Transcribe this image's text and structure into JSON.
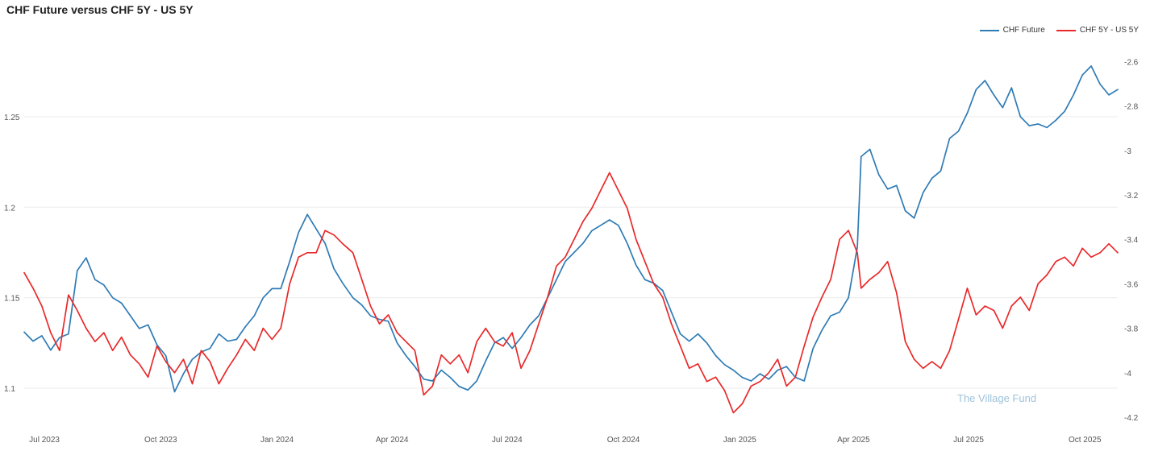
{
  "chart_data": {
    "type": "line",
    "title": "CHF Future versus CHF 5Y - US 5Y",
    "xlabel": "",
    "ylabel_left": "",
    "ylabel_right": "",
    "x_ticks": [
      "Jul 2023",
      "Oct 2023",
      "Jan 2024",
      "Apr 2024",
      "Jul 2024",
      "Oct 2024",
      "Jan 2025",
      "Apr 2025",
      "Jul 2025",
      "Oct 2025"
    ],
    "x_start": "2023-06-15",
    "x_end": "2025-10-27",
    "y_left": {
      "ticks": [
        "1.1",
        "1.15",
        "1.2",
        "1.25"
      ],
      "range": [
        1.084,
        1.286
      ]
    },
    "y_right": {
      "ticks": [
        "-2.6",
        "-2.8",
        "-3",
        "-3.2",
        "-3.4",
        "-3.6",
        "-3.8",
        "-4",
        "-4.2"
      ],
      "range": [
        -4.2,
        -2.555
      ]
    },
    "grid": true,
    "legend": "top-right",
    "series": [
      {
        "name": "CHF Future",
        "color": "#2f7bb5",
        "axis": "left",
        "points": [
          [
            "2023-06-15",
            1.131
          ],
          [
            "2023-06-22",
            1.126
          ],
          [
            "2023-06-29",
            1.129
          ],
          [
            "2023-07-06",
            1.121
          ],
          [
            "2023-07-13",
            1.128
          ],
          [
            "2023-07-20",
            1.13
          ],
          [
            "2023-07-27",
            1.165
          ],
          [
            "2023-08-03",
            1.172
          ],
          [
            "2023-08-10",
            1.16
          ],
          [
            "2023-08-17",
            1.157
          ],
          [
            "2023-08-24",
            1.15
          ],
          [
            "2023-08-31",
            1.147
          ],
          [
            "2023-09-07",
            1.14
          ],
          [
            "2023-09-14",
            1.133
          ],
          [
            "2023-09-21",
            1.135
          ],
          [
            "2023-09-28",
            1.124
          ],
          [
            "2023-10-05",
            1.118
          ],
          [
            "2023-10-12",
            1.098
          ],
          [
            "2023-10-19",
            1.108
          ],
          [
            "2023-10-26",
            1.116
          ],
          [
            "2023-11-02",
            1.12
          ],
          [
            "2023-11-09",
            1.122
          ],
          [
            "2023-11-16",
            1.13
          ],
          [
            "2023-11-23",
            1.126
          ],
          [
            "2023-11-30",
            1.127
          ],
          [
            "2023-12-07",
            1.134
          ],
          [
            "2023-12-14",
            1.14
          ],
          [
            "2023-12-21",
            1.15
          ],
          [
            "2023-12-28",
            1.155
          ],
          [
            "2024-01-04",
            1.155
          ],
          [
            "2024-01-11",
            1.17
          ],
          [
            "2024-01-18",
            1.186
          ],
          [
            "2024-01-25",
            1.196
          ],
          [
            "2024-02-01",
            1.188
          ],
          [
            "2024-02-08",
            1.18
          ],
          [
            "2024-02-15",
            1.166
          ],
          [
            "2024-02-22",
            1.158
          ],
          [
            "2024-03-01",
            1.15
          ],
          [
            "2024-03-08",
            1.146
          ],
          [
            "2024-03-15",
            1.14
          ],
          [
            "2024-03-22",
            1.138
          ],
          [
            "2024-03-29",
            1.137
          ],
          [
            "2024-04-05",
            1.125
          ],
          [
            "2024-04-12",
            1.118
          ],
          [
            "2024-04-19",
            1.112
          ],
          [
            "2024-04-26",
            1.105
          ],
          [
            "2024-05-03",
            1.104
          ],
          [
            "2024-05-10",
            1.11
          ],
          [
            "2024-05-17",
            1.106
          ],
          [
            "2024-05-24",
            1.101
          ],
          [
            "2024-05-31",
            1.099
          ],
          [
            "2024-06-07",
            1.104
          ],
          [
            "2024-06-14",
            1.115
          ],
          [
            "2024-06-21",
            1.125
          ],
          [
            "2024-06-28",
            1.128
          ],
          [
            "2024-07-05",
            1.122
          ],
          [
            "2024-07-12",
            1.128
          ],
          [
            "2024-07-19",
            1.135
          ],
          [
            "2024-07-26",
            1.14
          ],
          [
            "2024-08-02",
            1.15
          ],
          [
            "2024-08-09",
            1.16
          ],
          [
            "2024-08-16",
            1.17
          ],
          [
            "2024-08-23",
            1.175
          ],
          [
            "2024-08-30",
            1.18
          ],
          [
            "2024-09-06",
            1.187
          ],
          [
            "2024-09-13",
            1.19
          ],
          [
            "2024-09-20",
            1.193
          ],
          [
            "2024-09-27",
            1.19
          ],
          [
            "2024-10-04",
            1.18
          ],
          [
            "2024-10-11",
            1.168
          ],
          [
            "2024-10-18",
            1.16
          ],
          [
            "2024-10-25",
            1.158
          ],
          [
            "2024-11-01",
            1.154
          ],
          [
            "2024-11-08",
            1.142
          ],
          [
            "2024-11-15",
            1.13
          ],
          [
            "2024-11-22",
            1.126
          ],
          [
            "2024-11-29",
            1.13
          ],
          [
            "2024-12-06",
            1.125
          ],
          [
            "2024-12-13",
            1.118
          ],
          [
            "2024-12-20",
            1.113
          ],
          [
            "2024-12-27",
            1.11
          ],
          [
            "2025-01-03",
            1.106
          ],
          [
            "2025-01-10",
            1.104
          ],
          [
            "2025-01-17",
            1.108
          ],
          [
            "2025-01-24",
            1.105
          ],
          [
            "2025-01-31",
            1.11
          ],
          [
            "2025-02-07",
            1.112
          ],
          [
            "2025-02-14",
            1.106
          ],
          [
            "2025-02-21",
            1.104
          ],
          [
            "2025-02-28",
            1.122
          ],
          [
            "2025-03-07",
            1.132
          ],
          [
            "2025-03-14",
            1.14
          ],
          [
            "2025-03-21",
            1.142
          ],
          [
            "2025-03-28",
            1.15
          ],
          [
            "2025-04-04",
            1.178
          ],
          [
            "2025-04-07",
            1.228
          ],
          [
            "2025-04-14",
            1.232
          ],
          [
            "2025-04-21",
            1.218
          ],
          [
            "2025-04-28",
            1.21
          ],
          [
            "2025-05-05",
            1.212
          ],
          [
            "2025-05-12",
            1.198
          ],
          [
            "2025-05-19",
            1.194
          ],
          [
            "2025-05-26",
            1.208
          ],
          [
            "2025-06-02",
            1.216
          ],
          [
            "2025-06-09",
            1.22
          ],
          [
            "2025-06-16",
            1.238
          ],
          [
            "2025-06-23",
            1.242
          ],
          [
            "2025-06-30",
            1.252
          ],
          [
            "2025-07-07",
            1.265
          ],
          [
            "2025-07-14",
            1.27
          ],
          [
            "2025-07-21",
            1.262
          ],
          [
            "2025-07-28",
            1.255
          ],
          [
            "2025-08-04",
            1.266
          ],
          [
            "2025-08-11",
            1.25
          ],
          [
            "2025-08-18",
            1.245
          ],
          [
            "2025-08-25",
            1.246
          ],
          [
            "2025-09-01",
            1.244
          ],
          [
            "2025-09-08",
            1.248
          ],
          [
            "2025-09-15",
            1.253
          ],
          [
            "2025-09-22",
            1.262
          ],
          [
            "2025-09-29",
            1.273
          ],
          [
            "2025-10-06",
            1.278
          ],
          [
            "2025-10-13",
            1.268
          ],
          [
            "2025-10-20",
            1.262
          ],
          [
            "2025-10-27",
            1.265
          ]
        ]
      },
      {
        "name": "CHF 5Y - US 5Y",
        "color": "#e8292a",
        "axis": "right",
        "points": [
          [
            "2023-06-15",
            -3.55
          ],
          [
            "2023-06-22",
            -3.62
          ],
          [
            "2023-06-29",
            -3.7
          ],
          [
            "2023-07-06",
            -3.82
          ],
          [
            "2023-07-13",
            -3.9
          ],
          [
            "2023-07-20",
            -3.65
          ],
          [
            "2023-07-27",
            -3.72
          ],
          [
            "2023-08-03",
            -3.8
          ],
          [
            "2023-08-10",
            -3.86
          ],
          [
            "2023-08-17",
            -3.82
          ],
          [
            "2023-08-24",
            -3.9
          ],
          [
            "2023-08-31",
            -3.84
          ],
          [
            "2023-09-07",
            -3.92
          ],
          [
            "2023-09-14",
            -3.96
          ],
          [
            "2023-09-21",
            -4.02
          ],
          [
            "2023-09-28",
            -3.88
          ],
          [
            "2023-10-05",
            -3.95
          ],
          [
            "2023-10-12",
            -4.0
          ],
          [
            "2023-10-19",
            -3.94
          ],
          [
            "2023-10-26",
            -4.05
          ],
          [
            "2023-11-02",
            -3.9
          ],
          [
            "2023-11-09",
            -3.95
          ],
          [
            "2023-11-16",
            -4.05
          ],
          [
            "2023-11-23",
            -3.98
          ],
          [
            "2023-11-30",
            -3.92
          ],
          [
            "2023-12-07",
            -3.85
          ],
          [
            "2023-12-14",
            -3.9
          ],
          [
            "2023-12-21",
            -3.8
          ],
          [
            "2023-12-28",
            -3.85
          ],
          [
            "2024-01-04",
            -3.8
          ],
          [
            "2024-01-11",
            -3.6
          ],
          [
            "2024-01-18",
            -3.48
          ],
          [
            "2024-01-25",
            -3.46
          ],
          [
            "2024-02-01",
            -3.46
          ],
          [
            "2024-02-08",
            -3.36
          ],
          [
            "2024-02-15",
            -3.38
          ],
          [
            "2024-02-22",
            -3.42
          ],
          [
            "2024-03-01",
            -3.46
          ],
          [
            "2024-03-08",
            -3.58
          ],
          [
            "2024-03-15",
            -3.7
          ],
          [
            "2024-03-22",
            -3.78
          ],
          [
            "2024-03-29",
            -3.74
          ],
          [
            "2024-04-05",
            -3.82
          ],
          [
            "2024-04-12",
            -3.86
          ],
          [
            "2024-04-19",
            -3.9
          ],
          [
            "2024-04-26",
            -4.1
          ],
          [
            "2024-05-03",
            -4.06
          ],
          [
            "2024-05-10",
            -3.92
          ],
          [
            "2024-05-17",
            -3.96
          ],
          [
            "2024-05-24",
            -3.92
          ],
          [
            "2024-05-31",
            -4.0
          ],
          [
            "2024-06-07",
            -3.86
          ],
          [
            "2024-06-14",
            -3.8
          ],
          [
            "2024-06-21",
            -3.86
          ],
          [
            "2024-06-28",
            -3.88
          ],
          [
            "2024-07-05",
            -3.82
          ],
          [
            "2024-07-12",
            -3.98
          ],
          [
            "2024-07-19",
            -3.9
          ],
          [
            "2024-07-26",
            -3.78
          ],
          [
            "2024-08-02",
            -3.66
          ],
          [
            "2024-08-09",
            -3.52
          ],
          [
            "2024-08-16",
            -3.48
          ],
          [
            "2024-08-23",
            -3.4
          ],
          [
            "2024-08-30",
            -3.32
          ],
          [
            "2024-09-06",
            -3.26
          ],
          [
            "2024-09-13",
            -3.18
          ],
          [
            "2024-09-20",
            -3.1
          ],
          [
            "2024-09-27",
            -3.18
          ],
          [
            "2024-10-04",
            -3.26
          ],
          [
            "2024-10-11",
            -3.4
          ],
          [
            "2024-10-18",
            -3.5
          ],
          [
            "2024-10-25",
            -3.6
          ],
          [
            "2024-11-01",
            -3.66
          ],
          [
            "2024-11-08",
            -3.78
          ],
          [
            "2024-11-15",
            -3.88
          ],
          [
            "2024-11-22",
            -3.98
          ],
          [
            "2024-11-29",
            -3.96
          ],
          [
            "2024-12-06",
            -4.04
          ],
          [
            "2024-12-13",
            -4.02
          ],
          [
            "2024-12-20",
            -4.08
          ],
          [
            "2024-12-27",
            -4.18
          ],
          [
            "2025-01-03",
            -4.14
          ],
          [
            "2025-01-10",
            -4.06
          ],
          [
            "2025-01-17",
            -4.04
          ],
          [
            "2025-01-24",
            -4.0
          ],
          [
            "2025-01-31",
            -3.94
          ],
          [
            "2025-02-07",
            -4.06
          ],
          [
            "2025-02-14",
            -4.02
          ],
          [
            "2025-02-21",
            -3.88
          ],
          [
            "2025-02-28",
            -3.75
          ],
          [
            "2025-03-07",
            -3.66
          ],
          [
            "2025-03-14",
            -3.58
          ],
          [
            "2025-03-21",
            -3.4
          ],
          [
            "2025-03-28",
            -3.36
          ],
          [
            "2025-04-04",
            -3.46
          ],
          [
            "2025-04-07",
            -3.62
          ],
          [
            "2025-04-14",
            -3.58
          ],
          [
            "2025-04-21",
            -3.55
          ],
          [
            "2025-04-28",
            -3.5
          ],
          [
            "2025-05-05",
            -3.64
          ],
          [
            "2025-05-12",
            -3.86
          ],
          [
            "2025-05-19",
            -3.94
          ],
          [
            "2025-05-26",
            -3.98
          ],
          [
            "2025-06-02",
            -3.95
          ],
          [
            "2025-06-09",
            -3.98
          ],
          [
            "2025-06-16",
            -3.9
          ],
          [
            "2025-06-23",
            -3.76
          ],
          [
            "2025-06-30",
            -3.62
          ],
          [
            "2025-07-07",
            -3.74
          ],
          [
            "2025-07-14",
            -3.7
          ],
          [
            "2025-07-21",
            -3.72
          ],
          [
            "2025-07-28",
            -3.8
          ],
          [
            "2025-08-04",
            -3.7
          ],
          [
            "2025-08-11",
            -3.66
          ],
          [
            "2025-08-18",
            -3.72
          ],
          [
            "2025-08-25",
            -3.6
          ],
          [
            "2025-09-01",
            -3.56
          ],
          [
            "2025-09-08",
            -3.5
          ],
          [
            "2025-09-15",
            -3.48
          ],
          [
            "2025-09-22",
            -3.52
          ],
          [
            "2025-09-29",
            -3.44
          ],
          [
            "2025-10-06",
            -3.48
          ],
          [
            "2025-10-13",
            -3.46
          ],
          [
            "2025-10-20",
            -3.42
          ],
          [
            "2025-10-27",
            -3.46
          ]
        ]
      }
    ],
    "watermark": "The Village Fund"
  }
}
